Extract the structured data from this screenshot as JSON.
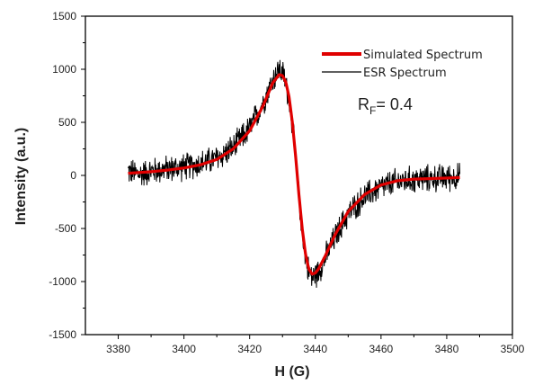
{
  "chart_data": {
    "type": "line",
    "xlabel": "H (G)",
    "ylabel": "Intensity (a.u.)",
    "xlim": [
      3370,
      3500
    ],
    "ylim": [
      -1500,
      1500
    ],
    "x_ticks": [
      "3380",
      "3400",
      "3420",
      "3440",
      "3460",
      "3480",
      "3500"
    ],
    "y_ticks": [
      "1500",
      "1000",
      "500",
      "0",
      "-500",
      "-1000",
      "-1500"
    ],
    "legend_position": "top-right",
    "annotation": {
      "prefix": "R",
      "subscript": "F",
      "suffix": "= 0.4"
    },
    "series": [
      {
        "name": "Simulated Spectrum",
        "color": "#e00000",
        "style": "thick-smooth",
        "x": [
          3383,
          3390,
          3395,
          3400,
          3405,
          3410,
          3415,
          3420,
          3424,
          3427,
          3429,
          3430,
          3431,
          3432,
          3433,
          3434,
          3435,
          3436,
          3437,
          3438,
          3439,
          3440,
          3441,
          3443,
          3446,
          3450,
          3455,
          3460,
          3465,
          3470,
          3475,
          3480,
          3484
        ],
        "values": [
          20,
          35,
          50,
          70,
          100,
          150,
          250,
          420,
          650,
          870,
          950,
          940,
          880,
          740,
          500,
          180,
          -180,
          -500,
          -740,
          -880,
          -930,
          -920,
          -880,
          -760,
          -560,
          -340,
          -180,
          -90,
          -50,
          -35,
          -30,
          -25,
          -20
        ]
      },
      {
        "name": "ESR Spectrum",
        "color": "#000000",
        "style": "noisy",
        "x": [
          3383,
          3386,
          3390,
          3395,
          3400,
          3405,
          3410,
          3415,
          3420,
          3424,
          3427,
          3429,
          3430,
          3431,
          3432,
          3433,
          3434,
          3435,
          3436,
          3437,
          3438,
          3439,
          3440,
          3441,
          3443,
          3446,
          3450,
          3455,
          3460,
          3465,
          3470,
          3475,
          3480,
          3484
        ],
        "values": [
          40,
          10,
          40,
          60,
          80,
          110,
          160,
          260,
          440,
          680,
          900,
          1000,
          960,
          880,
          720,
          480,
          150,
          -200,
          -520,
          -760,
          -900,
          -960,
          -940,
          -900,
          -780,
          -580,
          -360,
          -200,
          -110,
          -60,
          -40,
          -30,
          -20,
          -10
        ],
        "noise_amplitude": 110
      }
    ]
  }
}
